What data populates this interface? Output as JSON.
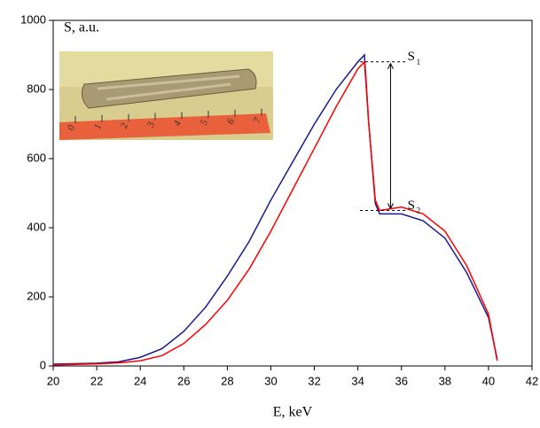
{
  "chart_data": {
    "type": "line",
    "ylabel": "S, a.u.",
    "xlabel": "E, keV",
    "xlim": [
      20,
      42
    ],
    "xticks": [
      20,
      22,
      24,
      26,
      28,
      30,
      32,
      34,
      36,
      38,
      40,
      42
    ],
    "ylim": [
      0,
      1000
    ],
    "yticks": [
      0,
      200,
      400,
      600,
      800,
      1000
    ],
    "series": [
      {
        "color": "#1a1a8c",
        "x": [
          20,
          22,
          23,
          24,
          25,
          26,
          27,
          28,
          29,
          30,
          31,
          32,
          33,
          34,
          34.3,
          34.5,
          34.8,
          35,
          36,
          37,
          38,
          39,
          40,
          40.4
        ],
        "values": [
          5,
          8,
          12,
          25,
          50,
          100,
          170,
          260,
          360,
          480,
          590,
          700,
          800,
          880,
          900,
          700,
          470,
          440,
          440,
          420,
          370,
          270,
          140,
          20
        ]
      },
      {
        "color": "#ff0000",
        "x": [
          20,
          22,
          23,
          24,
          25,
          26,
          27,
          28,
          29,
          30,
          31,
          32,
          33,
          34,
          34.3,
          34.5,
          34.8,
          35,
          36,
          37,
          38,
          39,
          40,
          40.4
        ],
        "values": [
          3,
          6,
          9,
          15,
          30,
          65,
          120,
          190,
          280,
          390,
          510,
          630,
          750,
          860,
          880,
          700,
          480,
          450,
          460,
          440,
          390,
          290,
          150,
          15
        ]
      }
    ],
    "levels": [
      {
        "label": "S",
        "subscript": "1",
        "value": 880
      },
      {
        "label": "S",
        "subscript": "2",
        "value": 450
      }
    ]
  },
  "inset": {
    "ruler_labels": [
      "0",
      "1",
      "2",
      "3",
      "4",
      "5",
      "6",
      "7"
    ]
  }
}
